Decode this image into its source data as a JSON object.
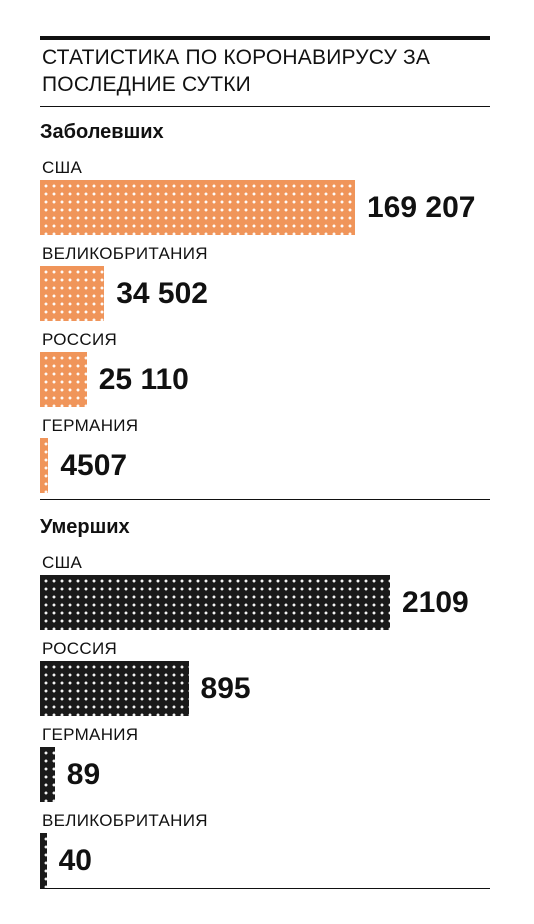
{
  "title": "СТАТИСТИКА ПО КОРОНАВИРУСУ ЗА ПОСЛЕДНИЕ СУТКИ",
  "chart_data": [
    {
      "type": "bar",
      "title": "Заболевших",
      "color": "#f0955a",
      "categories": [
        "США",
        "ВЕЛИКОБРИТАНИЯ",
        "РОССИЯ",
        "ГЕРМАНИЯ"
      ],
      "values": [
        169207,
        34502,
        25110,
        4507
      ],
      "value_labels": [
        "169 207",
        "34 502",
        "25 110",
        "4507"
      ]
    },
    {
      "type": "bar",
      "title": "Умерших",
      "color": "#1a1a1a",
      "categories": [
        "США",
        "РОССИЯ",
        "ГЕРМАНИЯ",
        "ВЕЛИКОБРИТАНИЯ"
      ],
      "values": [
        2109,
        895,
        89,
        40
      ]
    }
  ]
}
